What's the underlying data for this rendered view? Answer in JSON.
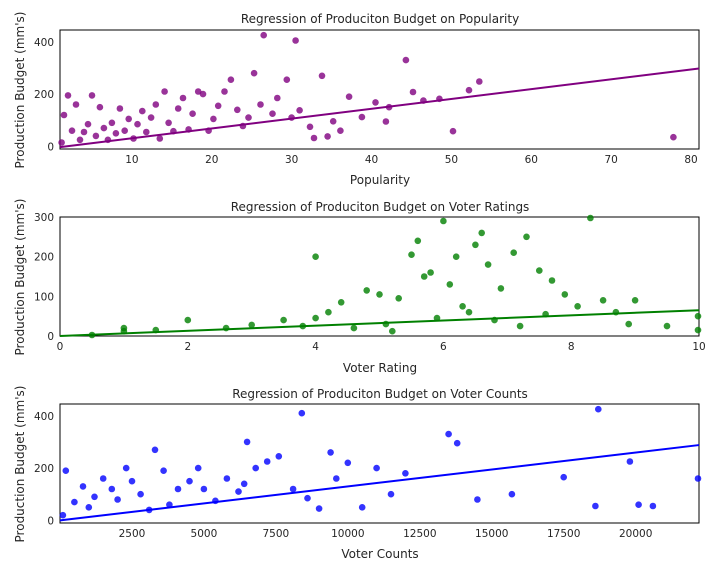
{
  "chart_data": [
    {
      "type": "scatter",
      "title": "Regression of Produciton Budget on Popularity",
      "xlabel": "Popularity",
      "ylabel": "Production Budget (mm's)",
      "xlim": [
        1,
        81
      ],
      "ylim": [
        -10,
        445
      ],
      "xticks": [
        10,
        20,
        30,
        40,
        50,
        60,
        70,
        80
      ],
      "yticks": [
        0,
        200,
        400
      ],
      "color": "#800080",
      "grid": false,
      "points": [
        [
          26.5,
          425
        ],
        [
          30.5,
          405
        ],
        [
          44.3,
          330
        ],
        [
          53.5,
          248
        ],
        [
          77.8,
          35
        ],
        [
          50.2,
          58
        ],
        [
          46.5,
          175
        ],
        [
          48.5,
          182
        ],
        [
          52.2,
          215
        ],
        [
          42.2,
          150
        ],
        [
          40.5,
          168
        ],
        [
          38.8,
          112
        ],
        [
          37.2,
          190
        ],
        [
          35.2,
          96
        ],
        [
          34.5,
          38
        ],
        [
          32.8,
          32
        ],
        [
          32.3,
          75
        ],
        [
          31,
          138
        ],
        [
          30,
          110
        ],
        [
          29.4,
          255
        ],
        [
          28.2,
          185
        ],
        [
          27.6,
          125
        ],
        [
          26.1,
          160
        ],
        [
          25.3,
          280
        ],
        [
          24.6,
          110
        ],
        [
          23.9,
          78
        ],
        [
          23.2,
          140
        ],
        [
          22.4,
          255
        ],
        [
          21.6,
          210
        ],
        [
          20.8,
          155
        ],
        [
          20.2,
          105
        ],
        [
          19.6,
          60
        ],
        [
          18.9,
          200
        ],
        [
          18.3,
          210
        ],
        [
          17.6,
          125
        ],
        [
          17.1,
          65
        ],
        [
          16.4,
          185
        ],
        [
          15.8,
          145
        ],
        [
          15.2,
          58
        ],
        [
          14.6,
          90
        ],
        [
          14.1,
          210
        ],
        [
          13.5,
          30
        ],
        [
          13,
          160
        ],
        [
          12.4,
          110
        ],
        [
          11.8,
          55
        ],
        [
          11.3,
          135
        ],
        [
          10.7,
          85
        ],
        [
          10.2,
          30
        ],
        [
          9.6,
          105
        ],
        [
          9.1,
          60
        ],
        [
          8.5,
          145
        ],
        [
          8,
          50
        ],
        [
          7.5,
          90
        ],
        [
          7,
          25
        ],
        [
          6.5,
          70
        ],
        [
          6,
          150
        ],
        [
          5.5,
          40
        ],
        [
          5,
          195
        ],
        [
          4.5,
          85
        ],
        [
          4,
          55
        ],
        [
          3.5,
          25
        ],
        [
          3,
          160
        ],
        [
          2.5,
          60
        ],
        [
          2,
          195
        ],
        [
          1.5,
          120
        ],
        [
          1.2,
          15
        ],
        [
          33.8,
          270
        ],
        [
          36.1,
          60
        ],
        [
          41.8,
          95
        ],
        [
          45.2,
          208
        ]
      ],
      "regression": {
        "x": [
          1,
          81
        ],
        "y": [
          -3,
          298
        ]
      }
    },
    {
      "type": "scatter",
      "title": "Regression of Produciton Budget on Voter Ratings",
      "xlabel": "Voter Rating",
      "ylabel": "Production Budget (mm's)",
      "xlim": [
        0,
        10
      ],
      "ylim": [
        0,
        300
      ],
      "xticks": [
        0,
        2,
        4,
        6,
        8,
        10
      ],
      "yticks": [
        0,
        100,
        200,
        300
      ],
      "color": "#008000",
      "grid": false,
      "points": [
        [
          0.5,
          0
        ],
        [
          1,
          20
        ],
        [
          1,
          12
        ],
        [
          1.5,
          15
        ],
        [
          2.0,
          40
        ],
        [
          2.6,
          20
        ],
        [
          3,
          28
        ],
        [
          3.5,
          40
        ],
        [
          3.8,
          25
        ],
        [
          4,
          45
        ],
        [
          4,
          200
        ],
        [
          4.2,
          60
        ],
        [
          4.4,
          85
        ],
        [
          4.6,
          20
        ],
        [
          4.8,
          115
        ],
        [
          5,
          105
        ],
        [
          5.1,
          30
        ],
        [
          5.3,
          95
        ],
        [
          5.5,
          205
        ],
        [
          5.6,
          240
        ],
        [
          5.8,
          160
        ],
        [
          6,
          290
        ],
        [
          6.1,
          130
        ],
        [
          6.3,
          75
        ],
        [
          6.5,
          230
        ],
        [
          6.7,
          180
        ],
        [
          6.9,
          120
        ],
        [
          7.1,
          210
        ],
        [
          7.3,
          250
        ],
        [
          7.5,
          165
        ],
        [
          7.7,
          140
        ],
        [
          7.9,
          105
        ],
        [
          8.1,
          75
        ],
        [
          8.3,
          300
        ],
        [
          8.5,
          90
        ],
        [
          8.7,
          60
        ],
        [
          8.9,
          30
        ],
        [
          9,
          90
        ],
        [
          9.5,
          25
        ],
        [
          10,
          50
        ],
        [
          10,
          15
        ],
        [
          5.2,
          12
        ],
        [
          5.9,
          45
        ],
        [
          6.4,
          60
        ],
        [
          6.8,
          40
        ],
        [
          7.2,
          25
        ],
        [
          7.6,
          55
        ],
        [
          6.2,
          200
        ],
        [
          6.6,
          260
        ],
        [
          5.7,
          150
        ]
      ],
      "regression": {
        "x": [
          0,
          10
        ],
        "y": [
          0,
          65
        ]
      }
    },
    {
      "type": "scatter",
      "title": "Regression of Produciton Budget on Voter Counts",
      "xlabel": "Voter Counts",
      "ylabel": "Production Budget (mm's)",
      "xlim": [
        0,
        22200
      ],
      "ylim": [
        -10,
        445
      ],
      "xticks": [
        2500,
        5000,
        7500,
        10000,
        12500,
        15000,
        17500,
        20000
      ],
      "yticks": [
        0,
        200,
        400
      ],
      "color": "#0000ff",
      "grid": false,
      "points": [
        [
          18700,
          425
        ],
        [
          8400,
          410
        ],
        [
          13500,
          330
        ],
        [
          13800,
          295
        ],
        [
          10000,
          220
        ],
        [
          9600,
          160
        ],
        [
          9000,
          45
        ],
        [
          8600,
          85
        ],
        [
          7600,
          245
        ],
        [
          7200,
          225
        ],
        [
          6800,
          200
        ],
        [
          6500,
          300
        ],
        [
          6200,
          110
        ],
        [
          5800,
          160
        ],
        [
          5400,
          75
        ],
        [
          5000,
          120
        ],
        [
          4800,
          200
        ],
        [
          4500,
          150
        ],
        [
          4100,
          120
        ],
        [
          3800,
          60
        ],
        [
          3600,
          190
        ],
        [
          3300,
          270
        ],
        [
          3100,
          40
        ],
        [
          2800,
          100
        ],
        [
          2500,
          150
        ],
        [
          2300,
          200
        ],
        [
          2000,
          80
        ],
        [
          1800,
          120
        ],
        [
          1500,
          160
        ],
        [
          1200,
          90
        ],
        [
          1000,
          50
        ],
        [
          800,
          130
        ],
        [
          500,
          70
        ],
        [
          200,
          190
        ],
        [
          100,
          20
        ],
        [
          14500,
          80
        ],
        [
          15700,
          100
        ],
        [
          17500,
          165
        ],
        [
          18600,
          55
        ],
        [
          19800,
          225
        ],
        [
          20100,
          60
        ],
        [
          20600,
          55
        ],
        [
          22200,
          160
        ],
        [
          12000,
          180
        ],
        [
          11500,
          100
        ],
        [
          11000,
          200
        ],
        [
          10500,
          50
        ],
        [
          9400,
          260
        ],
        [
          8100,
          120
        ],
        [
          6400,
          140
        ]
      ],
      "regression": {
        "x": [
          0,
          22200
        ],
        "y": [
          0,
          288
        ]
      }
    }
  ]
}
